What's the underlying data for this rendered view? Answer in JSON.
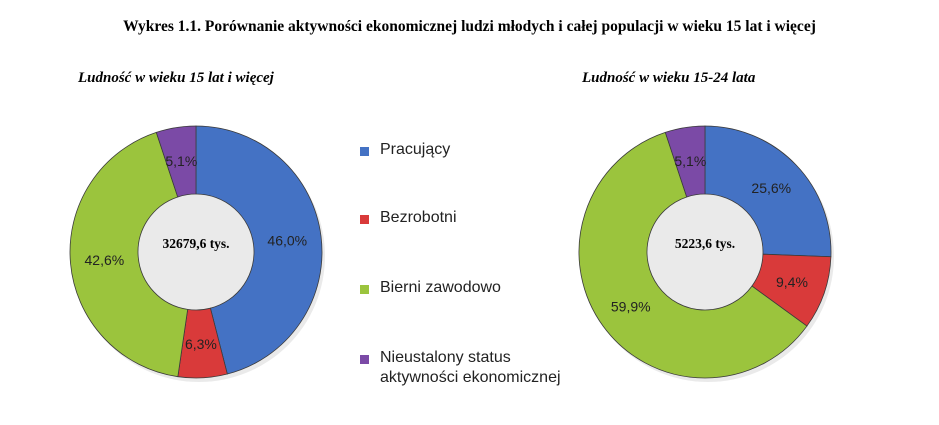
{
  "title": "Wykres 1.1. Porównanie aktywności ekonomicznej ludzi młodych i całej populacji w wieku 15 lat i więcej",
  "legend": [
    {
      "label": "Pracujący",
      "color": "#4472c4"
    },
    {
      "label": "Bezrobotni",
      "color": "#d93a3a"
    },
    {
      "label": "Bierni zawodowo",
      "color": "#9bc43d"
    },
    {
      "label": "Nieustalony status\naktywności ekonomicznej",
      "color": "#7b4aa6"
    }
  ],
  "chart_data": [
    {
      "type": "pie",
      "title": "Ludność w wieku 15 lat i więcej",
      "center_label": "32679,6 tys.",
      "categories": [
        "Pracujący",
        "Bezrobotni",
        "Bierni zawodowo",
        "Nieustalony status aktywności ekonomicznej"
      ],
      "values": [
        46.0,
        6.3,
        42.6,
        5.1
      ],
      "data_labels": [
        "46,0%",
        "6,3%",
        "42,6%",
        "5,1%"
      ]
    },
    {
      "type": "pie",
      "title": "Ludność w wieku 15-24 lata",
      "center_label": "5223,6 tys.",
      "categories": [
        "Pracujący",
        "Bezrobotni",
        "Bierni zawodowo",
        "Nieustalony status aktywności ekonomicznej"
      ],
      "values": [
        25.6,
        9.4,
        59.9,
        5.1
      ],
      "data_labels": [
        "25,6%",
        "9,4%",
        "59,9%",
        "5,1%"
      ]
    }
  ]
}
